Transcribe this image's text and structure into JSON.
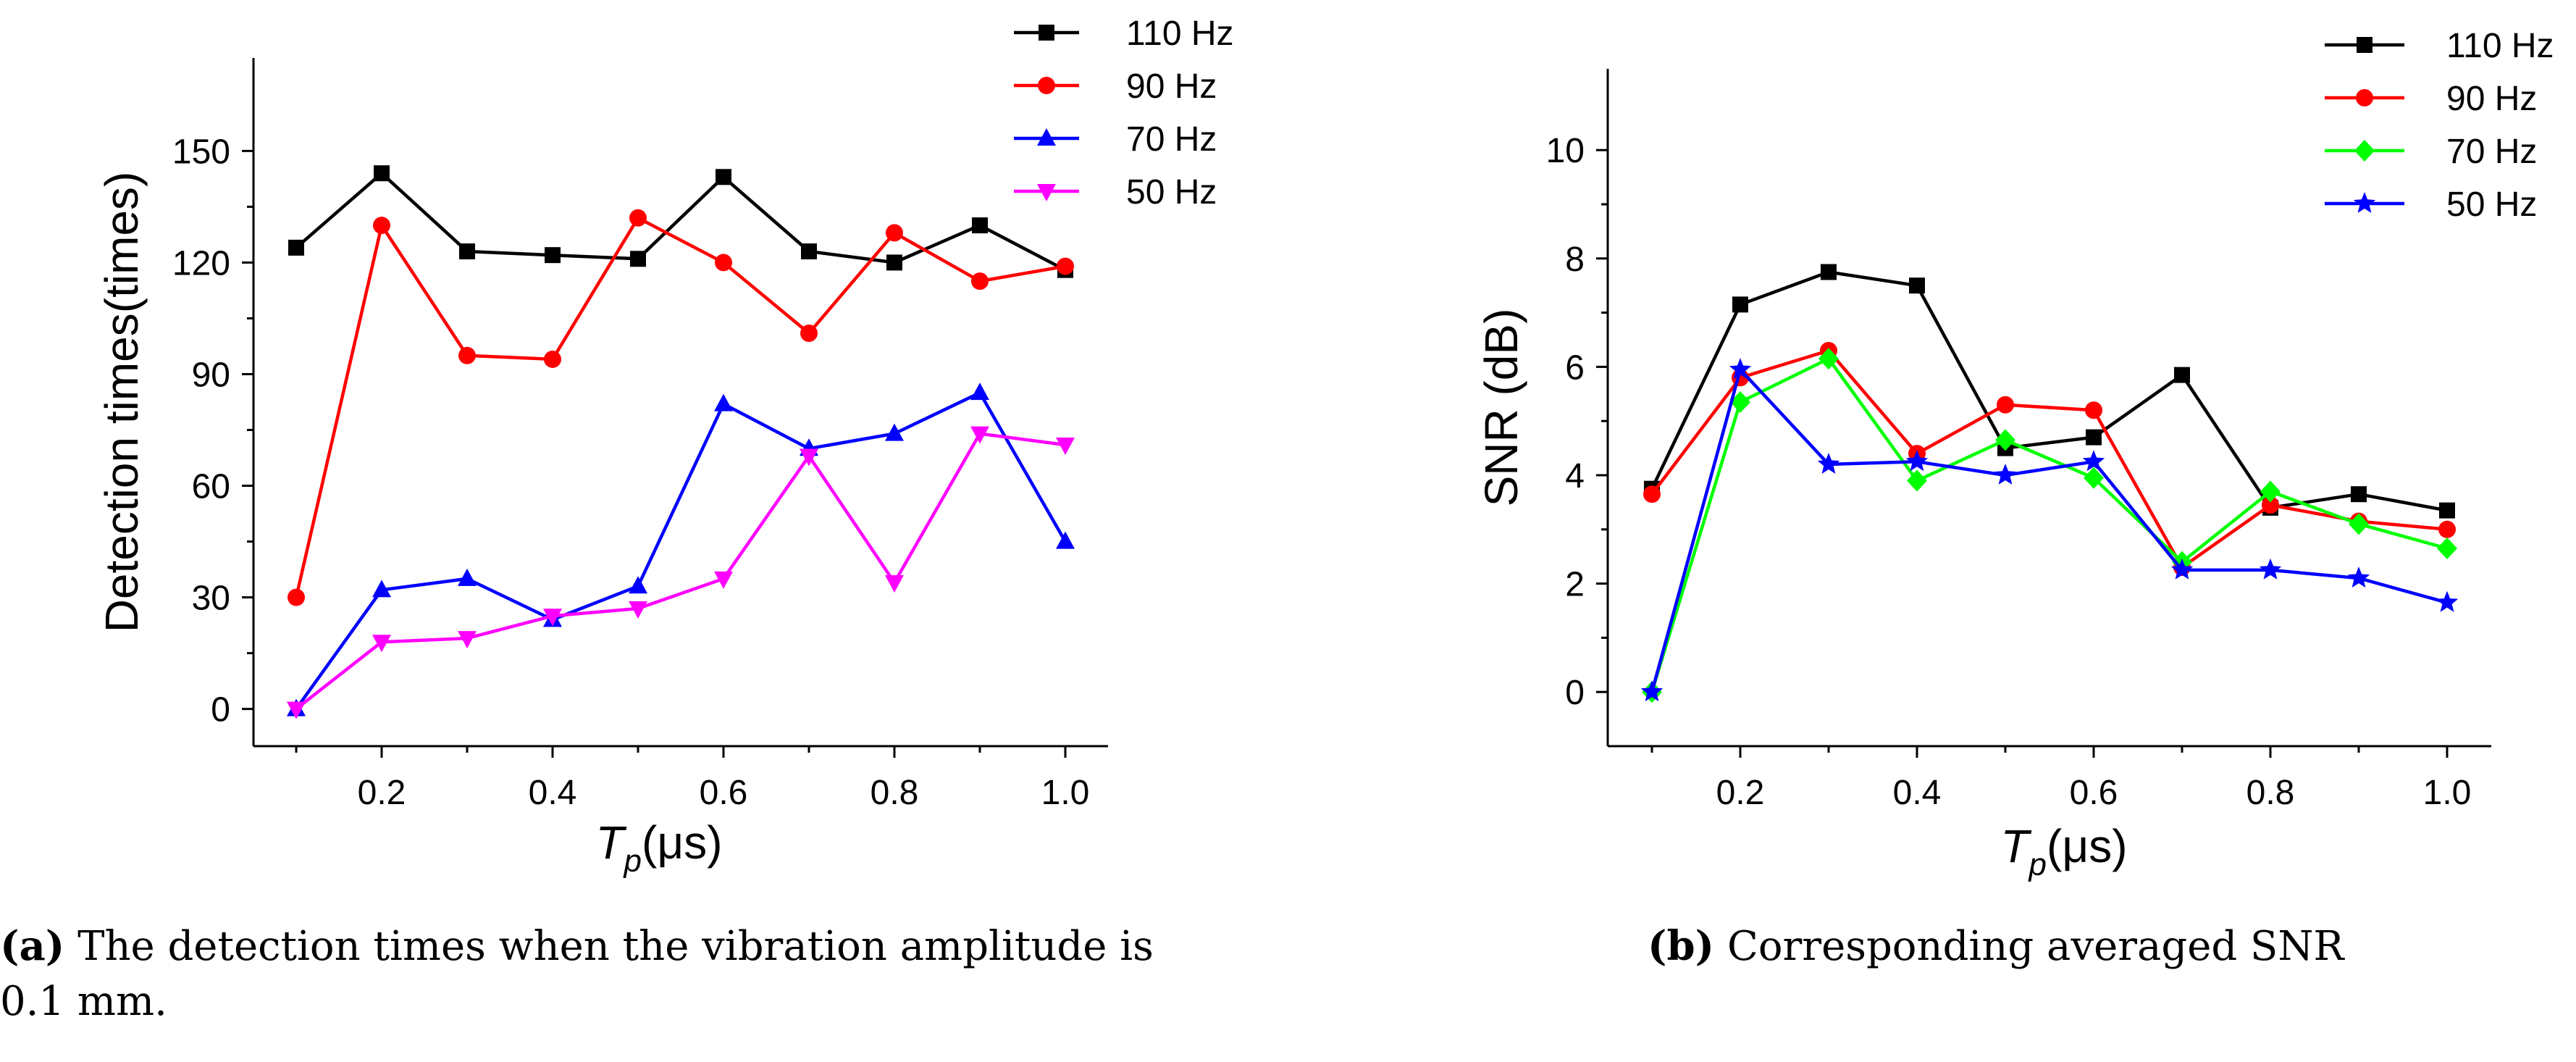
{
  "chart_data": [
    {
      "id": "a",
      "type": "line",
      "ylabel": "Detection times(times)",
      "xlabel": {
        "main": "T",
        "sub": "p",
        "unit": "(μs)"
      },
      "x": [
        0.1,
        0.2,
        0.3,
        0.4,
        0.5,
        0.6,
        0.7,
        0.8,
        0.9,
        1.0
      ],
      "xlim": [
        0.05,
        1.05
      ],
      "ylim": [
        -10,
        175
      ],
      "xticks": [
        0.2,
        0.4,
        0.6,
        0.8,
        1.0
      ],
      "xtick_labels": [
        "0.2",
        "0.4",
        "0.6",
        "0.8",
        "1.0"
      ],
      "yticks": [
        0,
        30,
        60,
        90,
        120,
        150
      ],
      "ytick_labels": [
        "0",
        "30",
        "60",
        "90",
        "120",
        "150"
      ],
      "legend_position": "top-right",
      "series": [
        {
          "name": "110 Hz",
          "color": "#000000",
          "marker": "square",
          "values": [
            124,
            144,
            123,
            122,
            121,
            143,
            123,
            120,
            130,
            118
          ]
        },
        {
          "name": "90 Hz",
          "color": "#ff0000",
          "marker": "circle",
          "values": [
            30,
            130,
            95,
            94,
            132,
            120,
            101,
            128,
            115,
            119
          ]
        },
        {
          "name": "70 Hz",
          "color": "#0000ff",
          "marker": "triangle-up",
          "values": [
            0,
            32,
            35,
            24,
            33,
            82,
            70,
            74,
            85,
            45
          ]
        },
        {
          "name": "50 Hz",
          "color": "#ff00ff",
          "marker": "triangle-down",
          "values": [
            0,
            18,
            19,
            25,
            27,
            35,
            68,
            34,
            74,
            71
          ]
        }
      ],
      "caption": {
        "label": "(a)",
        "text": "The detection times when the vibration amplitude is",
        "text2": "0.1 mm."
      }
    },
    {
      "id": "b",
      "type": "line",
      "ylabel": "SNR (dB)",
      "xlabel": {
        "main": "T",
        "sub": "p",
        "unit": "(μs)"
      },
      "x": [
        0.1,
        0.2,
        0.3,
        0.4,
        0.5,
        0.6,
        0.7,
        0.8,
        0.9,
        1.0
      ],
      "xlim": [
        0.05,
        1.05
      ],
      "ylim": [
        -1,
        11.5
      ],
      "xticks": [
        0.2,
        0.4,
        0.6,
        0.8,
        1.0
      ],
      "xtick_labels": [
        "0.2",
        "0.4",
        "0.6",
        "0.8",
        "1.0"
      ],
      "yticks": [
        0,
        2,
        4,
        6,
        8,
        10
      ],
      "ytick_labels": [
        "0",
        "2",
        "4",
        "6",
        "8",
        "10"
      ],
      "legend_position": "top-right",
      "series": [
        {
          "name": "110 Hz",
          "color": "#000000",
          "marker": "square",
          "values": [
            3.75,
            7.15,
            7.75,
            7.5,
            4.5,
            4.7,
            5.85,
            3.4,
            3.65,
            3.35
          ]
        },
        {
          "name": "90 Hz",
          "color": "#ff0000",
          "marker": "circle",
          "values": [
            3.65,
            5.8,
            6.3,
            4.4,
            5.3,
            5.2,
            2.3,
            3.45,
            3.15,
            3.0
          ]
        },
        {
          "name": "70 Hz",
          "color": "#00ff00",
          "marker": "diamond",
          "values": [
            0,
            5.35,
            6.15,
            3.9,
            4.65,
            3.95,
            2.4,
            3.7,
            3.1,
            2.65
          ]
        },
        {
          "name": "50 Hz",
          "color": "#0000ff",
          "marker": "star",
          "values": [
            0,
            5.95,
            4.2,
            4.25,
            4.0,
            4.25,
            2.25,
            2.25,
            2.1,
            1.65
          ]
        }
      ],
      "caption": {
        "label": "(b)",
        "text": "Corresponding averaged SNR",
        "text2": ""
      }
    }
  ]
}
